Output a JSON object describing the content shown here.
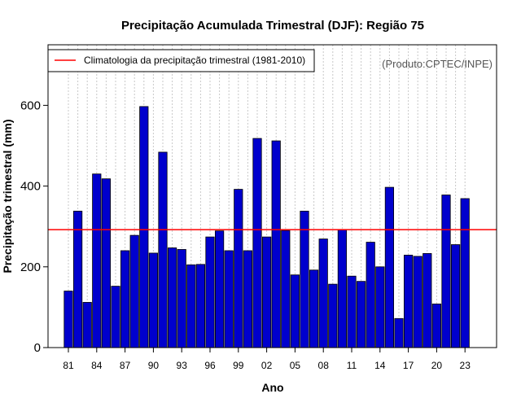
{
  "chart_data": {
    "type": "bar",
    "title": "Precipitação Acumulada Trimestral (DJF): Região 75",
    "xlabel": "Ano",
    "ylabel": "Precipitação trimestral (mm)",
    "credit": "(Produto:CPTEC/INPE)",
    "ylim": [
      0,
      750
    ],
    "yticks": [
      0,
      200,
      400,
      600
    ],
    "grid": "vertical dotted",
    "bar_color": "#0000cd",
    "years": [
      1981,
      1982,
      1983,
      1984,
      1985,
      1986,
      1987,
      1988,
      1989,
      1990,
      1991,
      1992,
      1993,
      1994,
      1995,
      1996,
      1997,
      1998,
      1999,
      2000,
      2001,
      2002,
      2003,
      2004,
      2005,
      2006,
      2007,
      2008,
      2009,
      2010,
      2011,
      2012,
      2013,
      2014,
      2015,
      2016,
      2017,
      2018,
      2019,
      2020,
      2021,
      2022,
      2023
    ],
    "x_tick_labels": [
      {
        "year": 1981,
        "label": "81"
      },
      {
        "year": 1984,
        "label": "84"
      },
      {
        "year": 1987,
        "label": "87"
      },
      {
        "year": 1990,
        "label": "90"
      },
      {
        "year": 1993,
        "label": "93"
      },
      {
        "year": 1996,
        "label": "96"
      },
      {
        "year": 1999,
        "label": "99"
      },
      {
        "year": 2002,
        "label": "02"
      },
      {
        "year": 2005,
        "label": "05"
      },
      {
        "year": 2008,
        "label": "08"
      },
      {
        "year": 2011,
        "label": "11"
      },
      {
        "year": 2014,
        "label": "14"
      },
      {
        "year": 2017,
        "label": "17"
      },
      {
        "year": 2020,
        "label": "20"
      },
      {
        "year": 2023,
        "label": "23"
      }
    ],
    "values": [
      140,
      338,
      112,
      430,
      418,
      152,
      240,
      278,
      597,
      234,
      484,
      247,
      243,
      205,
      206,
      274,
      289,
      240,
      392,
      240,
      518,
      274,
      512,
      290,
      180,
      338,
      192,
      269,
      157,
      292,
      177,
      164,
      261,
      200,
      397,
      72,
      229,
      226,
      233,
      108,
      378,
      255,
      369
    ],
    "climatology": {
      "label": "Climatologia da precipitação trimestral (1981-2010)",
      "value": 292,
      "color": "#ff0000"
    }
  }
}
